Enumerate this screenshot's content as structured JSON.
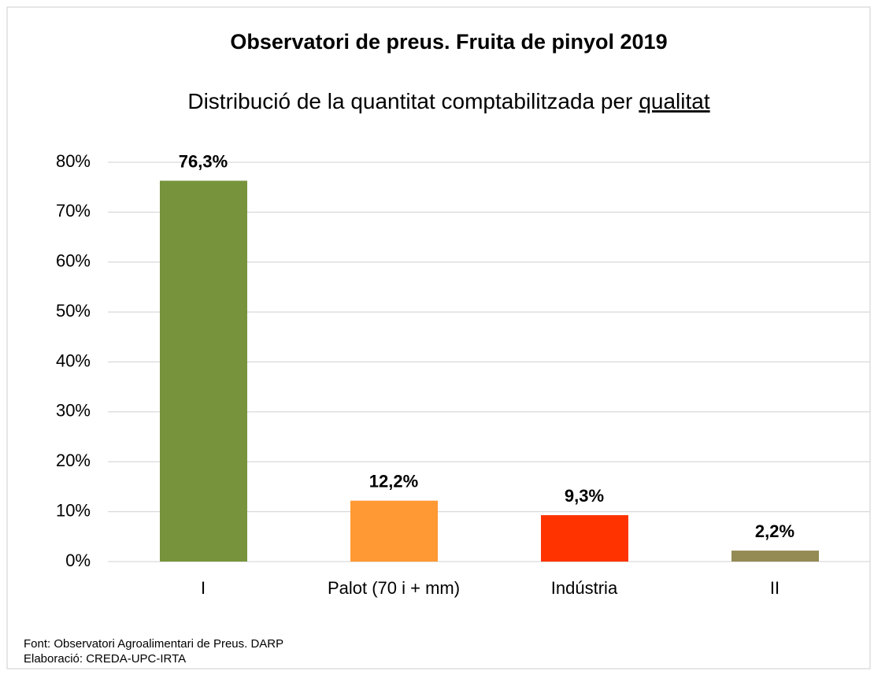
{
  "chart_data": {
    "type": "bar",
    "title": "Observatori de preus. Fruita de pinyol 2019",
    "subtitle": "Distribució de la quantitat comptabilitzada per",
    "subtitle_underlined": "qualitat",
    "categories": [
      "I",
      "Palot (70 i + mm)",
      "Indústria",
      "II"
    ],
    "values": [
      76.3,
      12.2,
      9.3,
      2.2
    ],
    "value_labels": [
      "76,3%",
      "12,2%",
      "9,3%",
      "2,2%"
    ],
    "colors": [
      "#77933c",
      "#ff9933",
      "#ff3300",
      "#948a54"
    ],
    "ylim": [
      0,
      80
    ],
    "yticks": [
      {
        "value": 0,
        "label": "0%"
      },
      {
        "value": 10,
        "label": "10%"
      },
      {
        "value": 20,
        "label": "20%"
      },
      {
        "value": 30,
        "label": "30%"
      },
      {
        "value": 40,
        "label": "40%"
      },
      {
        "value": 50,
        "label": "50%"
      },
      {
        "value": 60,
        "label": "60%"
      },
      {
        "value": 70,
        "label": "70%"
      },
      {
        "value": 80,
        "label": "80%"
      }
    ],
    "grid": true,
    "source": "Font: Observatori Agroalimentari de Preus. DARP",
    "credit": "Elaboració: CREDA-UPC-IRTA"
  }
}
